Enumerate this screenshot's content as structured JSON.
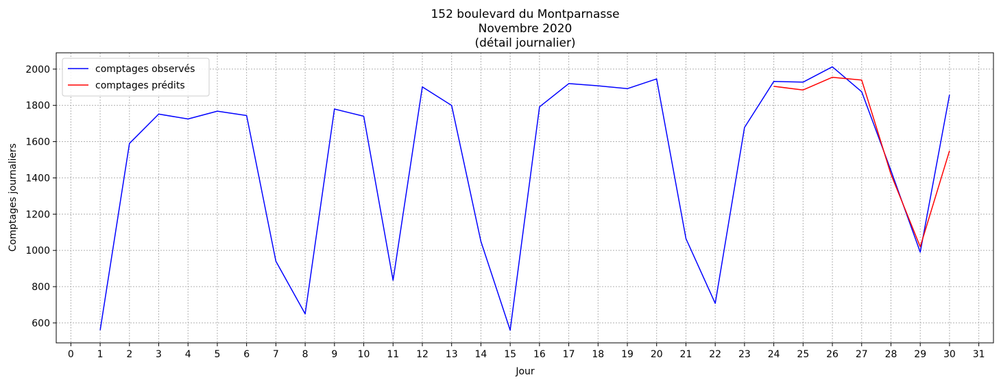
{
  "chart_data": {
    "type": "line",
    "title_lines": [
      "152 boulevard du Montparnasse",
      "Novembre 2020",
      "(détail journalier)"
    ],
    "xlabel": "Jour",
    "ylabel": "Comptages journaliers",
    "xlim": [
      -0.5,
      31.5
    ],
    "ylim": [
      490,
      2090
    ],
    "x_ticks": [
      0,
      1,
      2,
      3,
      4,
      5,
      6,
      7,
      8,
      9,
      10,
      11,
      12,
      13,
      14,
      15,
      16,
      17,
      18,
      19,
      20,
      21,
      22,
      23,
      24,
      25,
      26,
      27,
      28,
      29,
      30,
      31
    ],
    "y_ticks": [
      600,
      800,
      1000,
      1200,
      1400,
      1600,
      1800,
      2000
    ],
    "grid": true,
    "legend_position": "top-left",
    "series": [
      {
        "name": "comptages observés",
        "color": "#0000ff",
        "x": [
          1,
          2,
          3,
          4,
          5,
          6,
          7,
          8,
          9,
          10,
          11,
          12,
          13,
          14,
          15,
          16,
          17,
          18,
          19,
          20,
          21,
          22,
          23,
          24,
          25,
          26,
          27,
          28,
          29,
          30
        ],
        "y": [
          560,
          1590,
          1752,
          1725,
          1768,
          1744,
          940,
          650,
          1780,
          1740,
          835,
          1902,
          1800,
          1050,
          560,
          1792,
          1920,
          1908,
          1892,
          1946,
          1065,
          708,
          1678,
          1932,
          1928,
          2013,
          1875,
          1440,
          990,
          1858
        ]
      },
      {
        "name": "comptages prédits",
        "color": "#ff0000",
        "x": [
          24,
          25,
          26,
          27,
          28,
          29,
          30
        ],
        "y": [
          1905,
          1885,
          1955,
          1940,
          1420,
          1020,
          1550
        ]
      }
    ]
  }
}
